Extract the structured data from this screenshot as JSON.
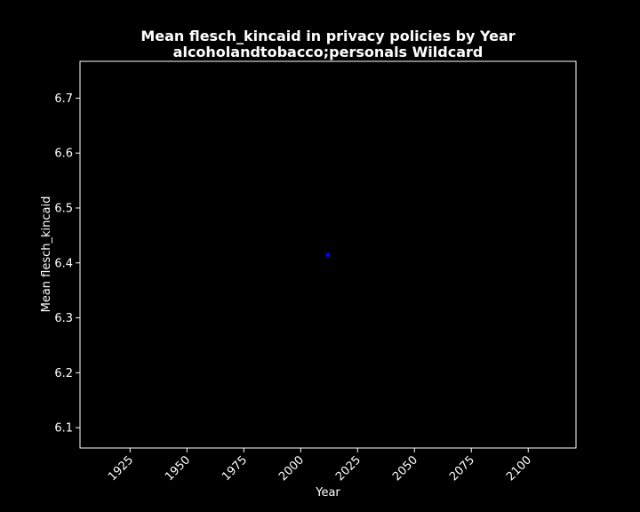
{
  "chart_data": {
    "type": "scatter",
    "title": "Mean flesch_kincaid in privacy policies by Year",
    "subtitle": "alcoholandtobacco;personals Wildcard",
    "xlabel": "Year",
    "ylabel": "Mean flesch_kincaid",
    "xlim": [
      1903,
      2121
    ],
    "ylim": [
      6.063,
      6.767
    ],
    "x_ticks": [
      1925,
      1950,
      1975,
      2000,
      2025,
      2050,
      2075,
      2100
    ],
    "y_ticks": [
      6.1,
      6.2,
      6.3,
      6.4,
      6.5,
      6.6,
      6.7
    ],
    "grid": false,
    "points": [
      {
        "x": 2012,
        "y": 6.415
      }
    ],
    "colors": {
      "background": "#000000",
      "axes": "#ffffff",
      "point": "#0000ff"
    }
  }
}
